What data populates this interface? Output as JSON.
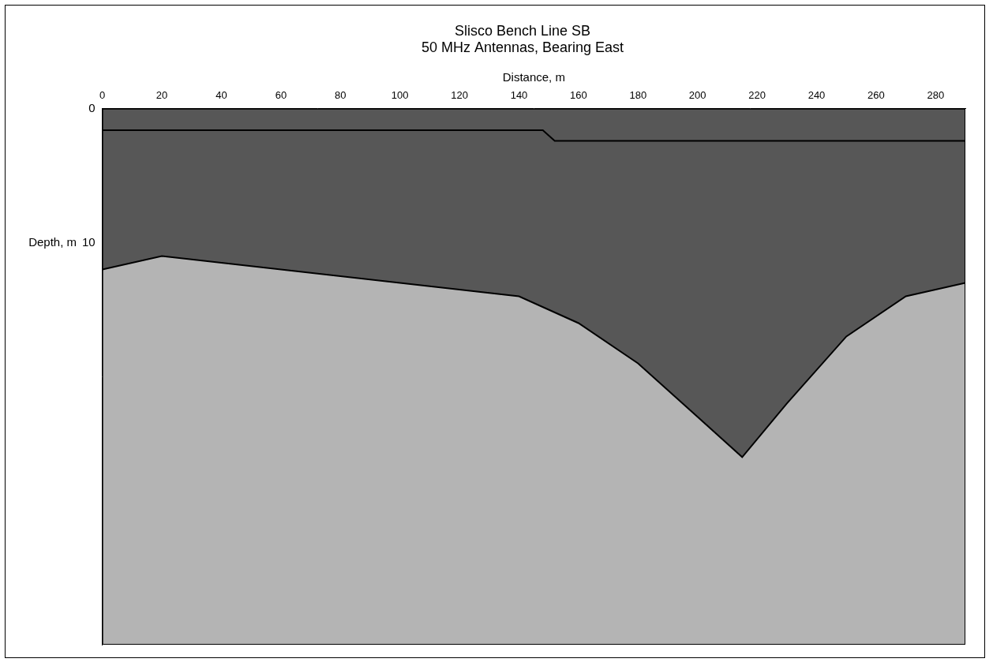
{
  "chart_data": {
    "type": "line",
    "title": [
      "Slisco Bench Line SB",
      "50 MHz Antennas, Bearing East"
    ],
    "x_label": "Distance, m",
    "y_label": "Depth, m",
    "xlim": [
      0,
      290
    ],
    "xticks": [
      0,
      20,
      40,
      60,
      80,
      100,
      120,
      140,
      160,
      180,
      200,
      220,
      240,
      260,
      280
    ],
    "ylim": [
      0,
      40
    ],
    "yticks": [
      0,
      10
    ],
    "grid": false,
    "series": [
      {
        "color": "#000000",
        "line_style": "solid",
        "x": [
          0,
          148,
          152,
          290
        ],
        "values": [
          1.6,
          1.6,
          2.4,
          2.4
        ]
      },
      {
        "color": "#000000",
        "line_style": "solid",
        "x": [
          0,
          20,
          40,
          60,
          80,
          100,
          120,
          140,
          160,
          180,
          200,
          215,
          230,
          250,
          270,
          290
        ],
        "values": [
          12,
          11,
          11.5,
          12,
          12.5,
          13,
          13.5,
          14,
          16,
          19,
          23,
          26,
          22,
          17,
          14,
          13
        ]
      }
    ]
  }
}
